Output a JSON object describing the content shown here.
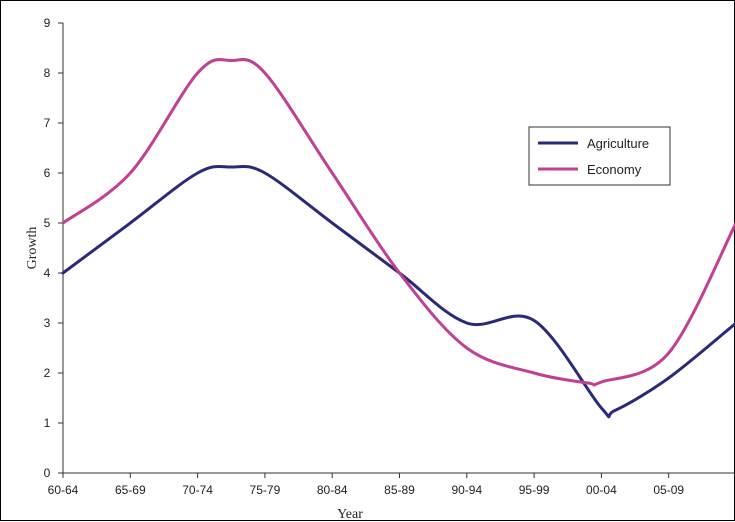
{
  "chart_data": {
    "type": "line",
    "title": "",
    "xlabel": "Year",
    "ylabel": "Growth",
    "categories": [
      "60-64",
      "65-69",
      "70-74",
      "75-79",
      "80-84",
      "85-89",
      "90-94",
      "95-99",
      "00-04",
      "05-09",
      ""
    ],
    "ylim": [
      0,
      9
    ],
    "yticks": [
      0,
      1,
      2,
      3,
      4,
      5,
      6,
      7,
      8,
      9
    ],
    "grid": false,
    "legend_position": "right",
    "series": [
      {
        "name": "Agriculture",
        "color": "#2b2a78",
        "x": [
          0,
          1,
          2,
          2.5,
          3,
          4,
          5,
          6,
          7,
          8,
          8.2,
          9,
          10
        ],
        "values": [
          4.0,
          5.0,
          6.0,
          6.12,
          6.0,
          5.0,
          4.0,
          3.0,
          3.05,
          1.3,
          1.25,
          1.9,
          3.0
        ]
      },
      {
        "name": "Economy",
        "color": "#c13f94",
        "x": [
          0,
          1,
          2,
          2.5,
          3,
          4,
          5,
          6,
          7,
          7.8,
          8,
          9,
          10
        ],
        "values": [
          5.0,
          6.0,
          8.0,
          8.25,
          8.0,
          6.0,
          4.0,
          2.5,
          2.0,
          1.8,
          1.82,
          2.4,
          5.0
        ]
      }
    ]
  }
}
